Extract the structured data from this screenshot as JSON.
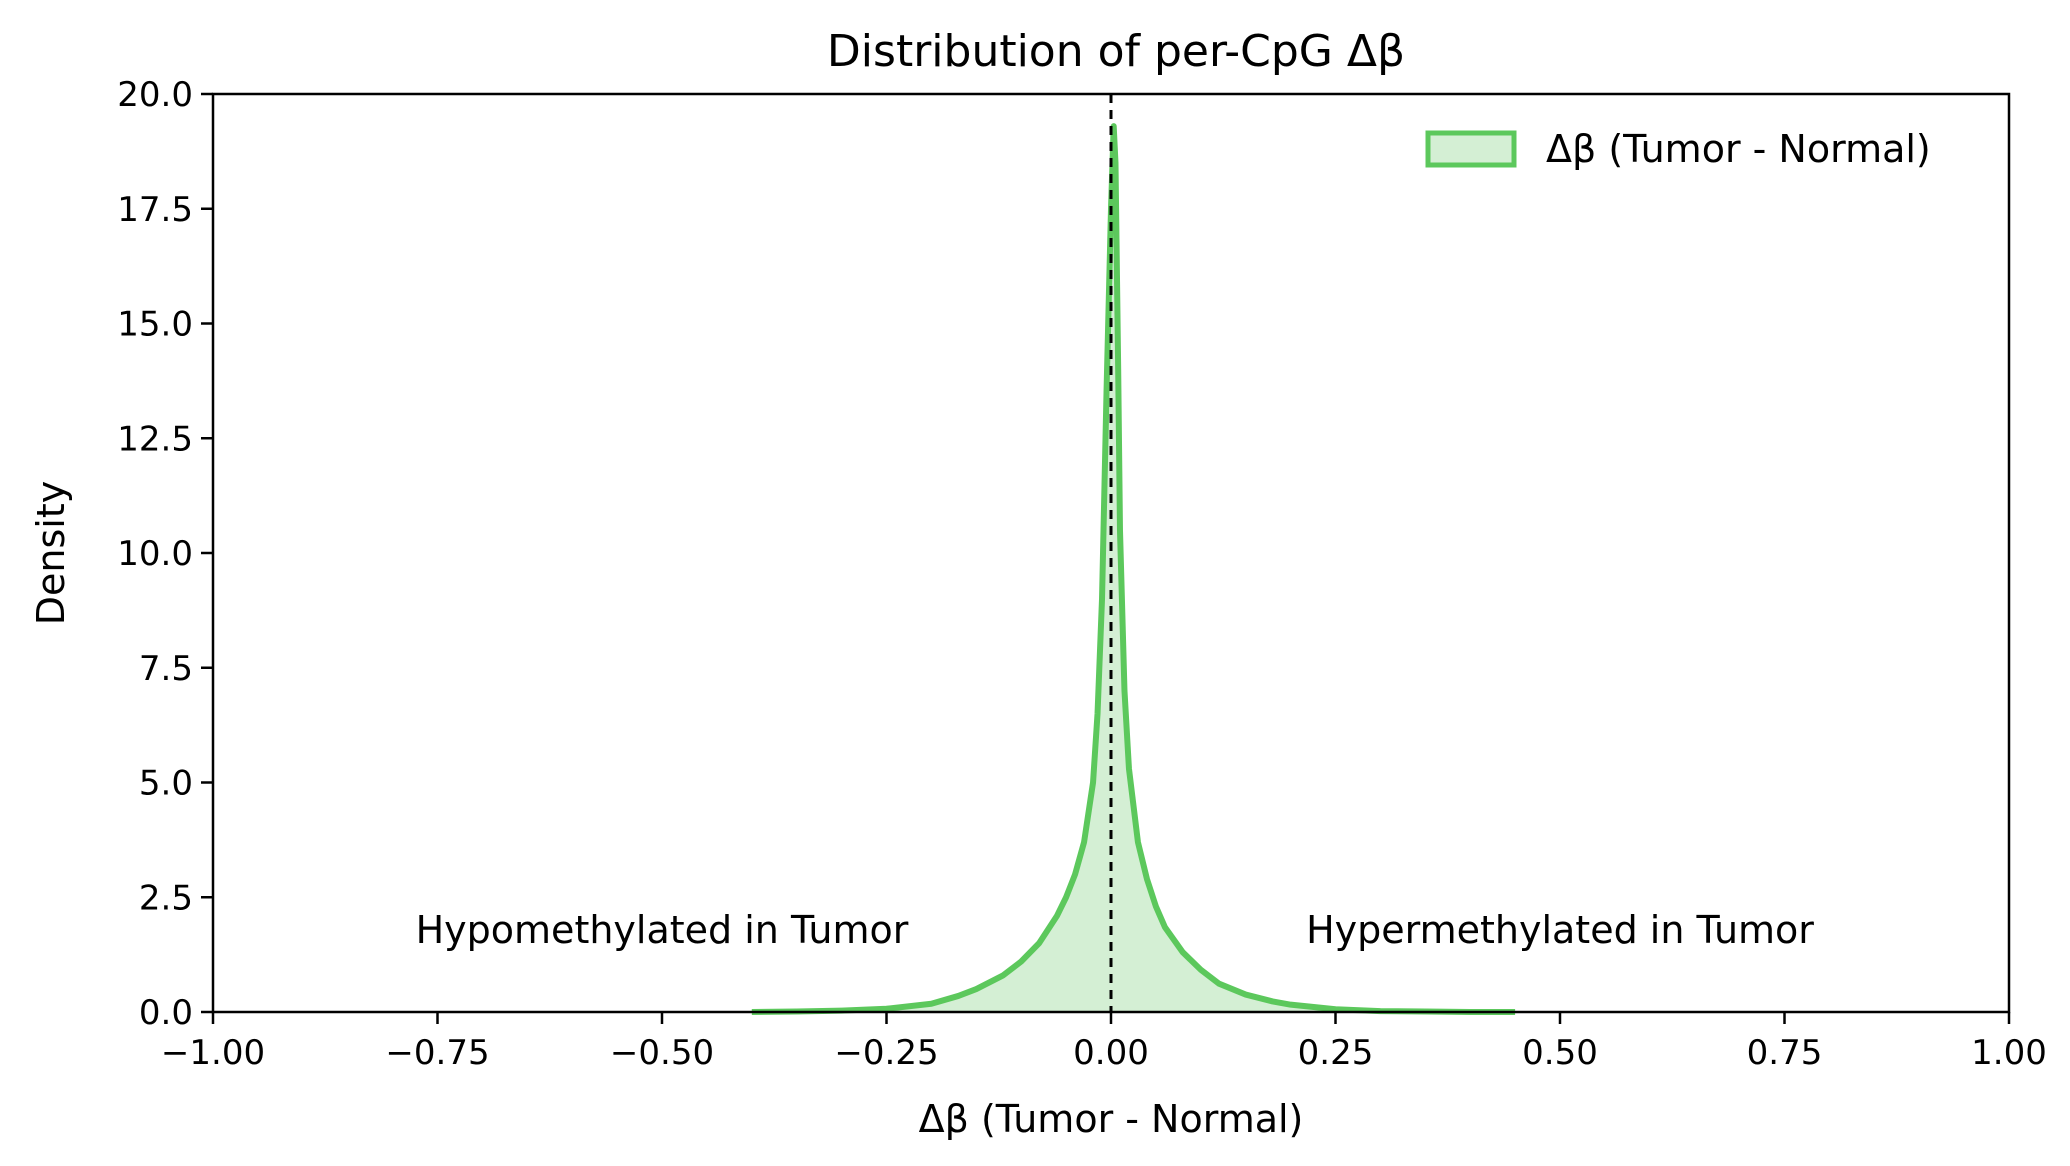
{
  "chart_data": {
    "type": "area",
    "title": "Distribution of per-CpG Δβ",
    "xlabel": "Δβ (Tumor - Normal)",
    "ylabel": "Density",
    "xlim": [
      -1.0,
      1.0
    ],
    "ylim": [
      0.0,
      20.0
    ],
    "x_ticks": [
      -1.0,
      -0.75,
      -0.5,
      -0.25,
      0.0,
      0.25,
      0.5,
      0.75,
      1.0
    ],
    "x_tick_labels": [
      "−1.00",
      "−0.75",
      "−0.50",
      "−0.25",
      "0.00",
      "0.25",
      "0.50",
      "0.75",
      "1.00"
    ],
    "y_ticks": [
      0.0,
      2.5,
      5.0,
      7.5,
      10.0,
      12.5,
      15.0,
      17.5,
      20.0
    ],
    "y_tick_labels": [
      "0.0",
      "2.5",
      "5.0",
      "7.5",
      "10.0",
      "12.5",
      "15.0",
      "17.5",
      "20.0"
    ],
    "grid": false,
    "legend_position": "top-right",
    "reference_line": {
      "x": 0.0,
      "style": "dashed",
      "color": "#000000"
    },
    "series": [
      {
        "name": "Δβ (Tumor - Normal)",
        "color": "#5cc85c",
        "fill_color": "#d4efd4",
        "x": [
          -0.4,
          -0.35,
          -0.3,
          -0.25,
          -0.2,
          -0.17,
          -0.15,
          -0.12,
          -0.1,
          -0.08,
          -0.06,
          -0.05,
          -0.04,
          -0.03,
          -0.02,
          -0.015,
          -0.01,
          -0.005,
          0.0,
          0.003,
          0.005,
          0.008,
          0.01,
          0.015,
          0.02,
          0.03,
          0.04,
          0.05,
          0.06,
          0.08,
          0.1,
          0.12,
          0.15,
          0.18,
          0.2,
          0.25,
          0.3,
          0.35,
          0.4,
          0.45
        ],
        "y": [
          0.0,
          0.01,
          0.03,
          0.07,
          0.18,
          0.35,
          0.5,
          0.8,
          1.1,
          1.5,
          2.1,
          2.5,
          3.0,
          3.7,
          5.0,
          6.5,
          9.0,
          13.5,
          17.5,
          19.3,
          18.5,
          14.0,
          10.5,
          7.0,
          5.3,
          3.7,
          2.9,
          2.3,
          1.85,
          1.3,
          0.92,
          0.62,
          0.38,
          0.23,
          0.16,
          0.06,
          0.02,
          0.01,
          0.0,
          0.0
        ]
      }
    ],
    "annotations": [
      {
        "text": "Hypomethylated in Tumor",
        "x": -0.5,
        "y": 1.5
      },
      {
        "text": "Hypermethylated in Tumor",
        "x": 0.5,
        "y": 1.5
      }
    ]
  }
}
